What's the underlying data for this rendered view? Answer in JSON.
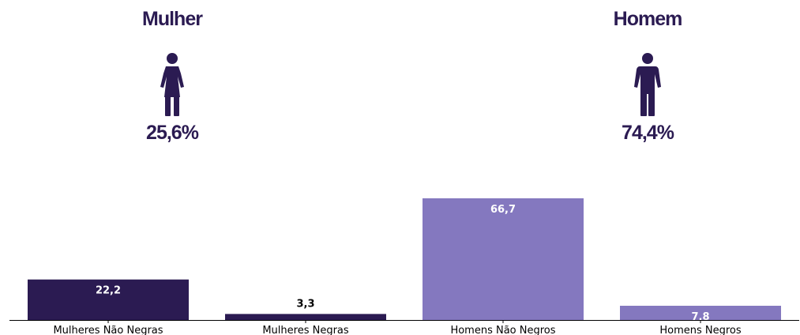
{
  "panels": {
    "female": {
      "title": "Mulher",
      "percent": "25,6%",
      "icon": "female-person-icon"
    },
    "male": {
      "title": "Homem",
      "percent": "74,4%",
      "icon": "male-person-icon"
    }
  },
  "colors": {
    "dark": "#2b1b52",
    "light": "#8478bf",
    "axis": "#000000"
  },
  "chart_data": {
    "type": "bar",
    "categories": [
      "Mulheres Não Negras",
      "Mulheres Negras",
      "Homens Não Negros",
      "Homens Negros"
    ],
    "values": [
      22.2,
      3.3,
      66.7,
      7.8
    ],
    "value_labels": [
      "22,2",
      "3,3",
      "66,7",
      "7,8"
    ],
    "bar_colors": [
      "#2b1b52",
      "#2b1b52",
      "#8478bf",
      "#8478bf"
    ],
    "label_colors": [
      "#ffffff",
      "#000000",
      "#ffffff",
      "#ffffff"
    ],
    "label_positions": [
      "inside",
      "above",
      "inside",
      "inside"
    ],
    "title": "",
    "xlabel": "",
    "ylabel": "",
    "ylim": [
      0,
      66.7
    ],
    "grid": false
  }
}
